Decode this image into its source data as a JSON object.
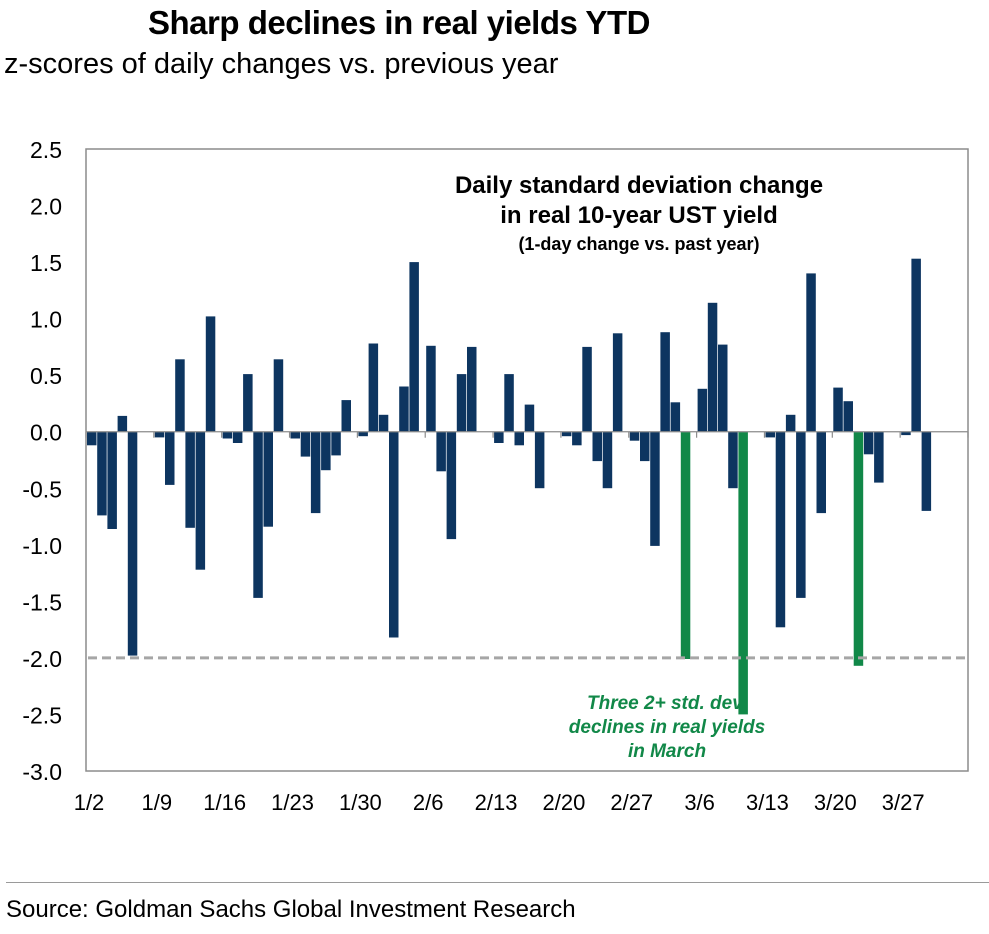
{
  "header": {
    "title": "Sharp declines in real yields YTD",
    "subtitle": "z-scores of daily changes vs. previous year"
  },
  "source": "Source: Goldman Sachs Global Investment Research",
  "colors": {
    "bar": "#0d3560",
    "highlight": "#118848",
    "threshold": "#a6a6a6",
    "annotation": "#118848"
  },
  "chart_data": {
    "type": "bar",
    "title_lines": [
      "Daily standard deviation change",
      "in real 10-year UST yield"
    ],
    "title_note": "(1-day change vs. past year)",
    "xlabel": "",
    "ylabel": "",
    "ylim": [
      -3.0,
      2.5
    ],
    "yticks": [
      "2.5",
      "2.0",
      "1.5",
      "1.0",
      "0.5",
      "0.0",
      "-0.5",
      "-1.0",
      "-1.5",
      "-2.0",
      "-2.5",
      "-3.0"
    ],
    "ytick_values": [
      2.5,
      2.0,
      1.5,
      1.0,
      0.5,
      0.0,
      -0.5,
      -1.0,
      -1.5,
      -2.0,
      -2.5,
      -3.0
    ],
    "xtick_labels": [
      "1/2",
      "1/9",
      "1/16",
      "1/23",
      "1/30",
      "2/6",
      "2/13",
      "2/20",
      "2/27",
      "3/6",
      "3/13",
      "3/20",
      "3/27"
    ],
    "week_labels": [
      "1/2",
      "1/9",
      "1/16",
      "1/23",
      "1/30",
      "2/6",
      "2/13",
      "2/20",
      "2/27",
      "3/6",
      "3/13",
      "3/20",
      "3/27"
    ],
    "values_by_week": [
      [
        -0.12,
        -0.74,
        -0.86,
        0.14,
        -1.98
      ],
      [
        -0.05,
        -0.47,
        0.64,
        -0.85,
        -1.22,
        1.02
      ],
      [
        -0.06,
        -0.1,
        0.51,
        -1.47,
        -0.84,
        0.64
      ],
      [
        -0.06,
        -0.22,
        -0.72,
        -0.34,
        -0.21,
        0.28
      ],
      [
        -0.04,
        0.78,
        0.15,
        -1.82,
        0.4,
        1.5
      ],
      [
        0.76,
        -0.35,
        -0.95,
        0.51,
        0.75
      ],
      [
        -0.1,
        0.51,
        -0.12,
        0.24,
        -0.5
      ],
      [
        -0.04,
        -0.12,
        0.75,
        -0.26,
        -0.5,
        0.87
      ],
      [
        -0.08,
        -0.26,
        -1.01,
        0.88,
        0.26,
        -2.01
      ],
      [
        0.38,
        1.14,
        0.77,
        -0.5,
        -2.5
      ],
      [
        -0.05,
        -1.73,
        0.15,
        -1.47,
        1.4,
        -0.72
      ],
      [
        0.39,
        0.27,
        -2.07,
        -0.2,
        -0.45
      ],
      [
        -0.03,
        1.53,
        -0.7
      ]
    ],
    "highlights": [
      [
        8,
        5
      ],
      [
        9,
        4
      ],
      [
        11,
        2
      ]
    ],
    "threshold": -2.0,
    "annotation_lines": [
      "Three 2+ std. dev.",
      "declines in real yields",
      "in March"
    ],
    "grid": false,
    "legend": "none"
  }
}
